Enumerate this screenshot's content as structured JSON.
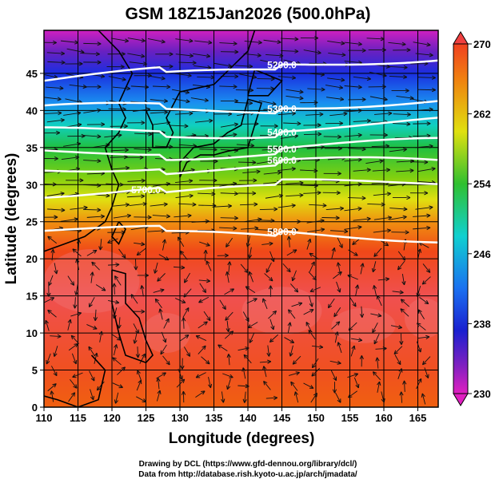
{
  "chart_data": {
    "type": "heatmap",
    "title": "GSM 18Z15Jan2026 (500.0hPa)",
    "xlabel": "Longitude (degrees)",
    "ylabel": "Latitude  (degrees)",
    "xlim": [
      110,
      168
    ],
    "ylim": [
      0,
      50.8
    ],
    "xticks": [
      110,
      115,
      120,
      125,
      130,
      135,
      140,
      145,
      150,
      155,
      160,
      165
    ],
    "yticks": [
      0,
      5,
      10,
      15,
      20,
      25,
      30,
      35,
      40,
      45
    ],
    "shading": {
      "variable": "temperature (K)",
      "colorbar_ticks": [
        230,
        238,
        246,
        254,
        262,
        270
      ],
      "range": [
        230,
        270
      ],
      "color_stops": [
        {
          "lat": 50.8,
          "color": "#d020c0"
        },
        {
          "lat": 48,
          "color": "#6a20c0"
        },
        {
          "lat": 45,
          "color": "#1a2ee0"
        },
        {
          "lat": 41,
          "color": "#1a90f0"
        },
        {
          "lat": 38,
          "color": "#10d0c0"
        },
        {
          "lat": 35,
          "color": "#20c040"
        },
        {
          "lat": 31,
          "color": "#80d010"
        },
        {
          "lat": 28,
          "color": "#e0e010"
        },
        {
          "lat": 25,
          "color": "#f09010"
        },
        {
          "lat": 21,
          "color": "#f04818"
        },
        {
          "lat": 15,
          "color": "#f05050"
        },
        {
          "lat": 5,
          "color": "#f05020"
        },
        {
          "lat": 0,
          "color": "#f06010"
        }
      ]
    },
    "contours": {
      "variable": "geopotential height (m)",
      "levels": [
        {
          "label": "5200.0",
          "lat_west": 44,
          "lat_east": 47.5
        },
        {
          "label": "5300.0",
          "lat_west": 40,
          "lat_east": 41.5
        },
        {
          "label": "5400.0",
          "lat_west": 37,
          "lat_east": 38.5
        },
        {
          "label": "5500.0",
          "lat_west": 34.5,
          "lat_east": 35.5
        },
        {
          "label": "5600.0",
          "lat_west": 32.5,
          "lat_east": 33
        },
        {
          "label": "5700.0",
          "lat_west": 29,
          "lat_east": 30.5
        },
        {
          "label": "5800.0",
          "lat_west": 24,
          "lat_east": 23
        }
      ]
    },
    "vectors": "wind streamlines"
  },
  "footer": {
    "line1": "Drawing by DCL (https://www.gfd-dennou.org/library/dcl/)",
    "line2": "Data from http://database.rish.kyoto-u.ac.jp/arch/jmadata/"
  }
}
